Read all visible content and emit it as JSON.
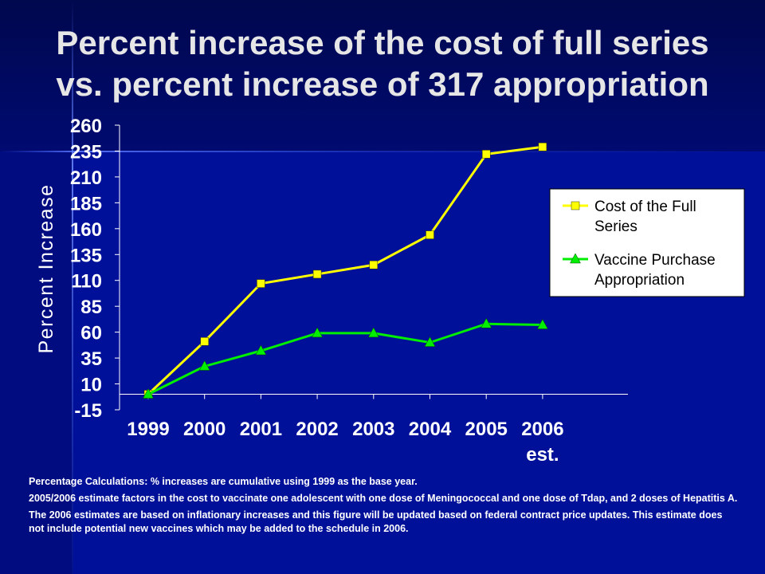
{
  "slide": {
    "title_line1": "Percent increase of the cost of full series",
    "title_line2": "vs. percent increase of 317 appropriation"
  },
  "colors": {
    "background_dark": "#000a66",
    "background_light": "#0018a8",
    "series_cost": "#ffff00",
    "series_appropriation": "#00ee00",
    "text": "#ffffff",
    "legend_bg": "#ffffff"
  },
  "chart_data": {
    "type": "line",
    "ylabel": "Percent Increase",
    "xlabel": "",
    "ylim": [
      -15,
      260
    ],
    "yticks": [
      "260",
      "235",
      "210",
      "185",
      "160",
      "135",
      "110",
      "85",
      "60",
      "35",
      "10",
      "-15"
    ],
    "categories": [
      "1999",
      "2000",
      "2001",
      "2002",
      "2003",
      "2004",
      "2005",
      "2006 est."
    ],
    "category_labels": [
      [
        "1999"
      ],
      [
        "2000"
      ],
      [
        "2001"
      ],
      [
        "2002"
      ],
      [
        "2003"
      ],
      [
        "2004"
      ],
      [
        "2005"
      ],
      [
        "2006",
        "est."
      ]
    ],
    "grid": false,
    "legend_position": "right",
    "series": [
      {
        "name": "Cost of the Full Series",
        "legend_lines": [
          "Cost of the Full",
          "Series"
        ],
        "marker": "square",
        "color": "#ffff00",
        "values": [
          0,
          51,
          107,
          116,
          125,
          154,
          232,
          239
        ]
      },
      {
        "name": "Vaccine Purchase Appropriation",
        "legend_lines": [
          "Vaccine Purchase",
          "Appropriation"
        ],
        "marker": "triangle",
        "color": "#00ee00",
        "values": [
          0,
          27,
          42,
          59,
          59,
          50,
          68,
          67
        ]
      }
    ]
  },
  "notes": [
    "Percentage Calculations:  %  increases are cumulative using 1999 as the base year.",
    "2005/2006 estimate factors in the cost to vaccinate one adolescent with one dose of Meningococcal and one dose of Tdap, and 2 doses of Hepatitis A.",
    "The 2006 estimates are based on inflationary increases and this figure will be updated based on federal contract price updates.  This estimate does not include potential new vaccines which may be added to the schedule in 2006."
  ]
}
